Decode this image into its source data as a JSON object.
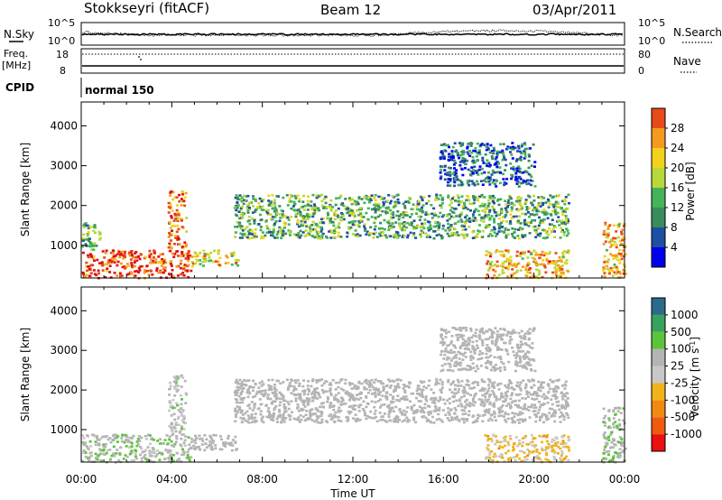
{
  "header": {
    "station": "Stokkseyri (fitACF)",
    "beam": "Beam 12",
    "date": "03/Apr/2011"
  },
  "strips": {
    "nsky_label": "N.Sky",
    "nsky_ticks": [
      "10^5",
      "10^0"
    ],
    "nsearch_label": "N.Search",
    "nsearch_ticks": [
      "10^5",
      "10^0"
    ],
    "freq_label_line1": "Freq.",
    "freq_label_line2": "[MHz]",
    "freq_ticks": [
      "18",
      "8"
    ],
    "nave_label": "Nave",
    "nave_ticks": [
      "80",
      "0"
    ],
    "cpid_label": "CPID",
    "cpid_value": "normal 150"
  },
  "colors": {
    "power_scale": [
      "#0000ee",
      "#1e4fa3",
      "#3a8c5a",
      "#44b35a",
      "#b8d83a",
      "#f2d21a",
      "#f49a1e",
      "#e84a18",
      "#e01010"
    ],
    "velocity_scale": [
      "#2040b0",
      "#2c6a8a",
      "#37a35c",
      "#5cc43a",
      "#b4b4b4",
      "#c8c8c8",
      "#f2b21a",
      "#f28a10",
      "#f05a10",
      "#e81010"
    ],
    "ground_scatter": "#b4b4b4"
  },
  "chart_data": [
    {
      "type": "heatmap",
      "title": "",
      "xlabel": "Time UT",
      "ylabel": "Slant Range [km]",
      "xlim": [
        "00:00",
        "24:00"
      ],
      "ylim": [
        180,
        4600
      ],
      "x_ticks": [
        "00:00",
        "04:00",
        "08:00",
        "12:00",
        "16:00",
        "20:00",
        "00:00"
      ],
      "y_ticks": [
        "1000",
        "2000",
        "3000",
        "4000"
      ],
      "colorbar_label": "Power [dB]",
      "colorbar_ticks": [
        "4",
        "8",
        "12",
        "16",
        "20",
        "24",
        "28"
      ],
      "color_range": [
        0,
        30
      ],
      "regions": [
        {
          "t_start": 0.0,
          "t_end": 4.8,
          "range_min": 200,
          "range_max": 900,
          "value": 26
        },
        {
          "t_start": 0.0,
          "t_end": 0.8,
          "range_min": 900,
          "range_max": 1600,
          "value": 12
        },
        {
          "t_start": 3.8,
          "t_end": 4.6,
          "range_min": 900,
          "range_max": 2400,
          "value": 22
        },
        {
          "t_start": 4.8,
          "t_end": 6.9,
          "range_min": 500,
          "range_max": 900,
          "value": 18
        },
        {
          "t_start": 6.7,
          "t_end": 21.5,
          "range_min": 1200,
          "range_max": 2300,
          "value": 11
        },
        {
          "t_start": 15.8,
          "t_end": 20.0,
          "range_min": 2500,
          "range_max": 3600,
          "value": 6
        },
        {
          "t_start": 17.8,
          "t_end": 21.5,
          "range_min": 200,
          "range_max": 900,
          "value": 20
        },
        {
          "t_start": 23.0,
          "t_end": 24.0,
          "range_min": 200,
          "range_max": 1600,
          "value": 20
        }
      ]
    },
    {
      "type": "heatmap",
      "title": "",
      "xlabel": "Time UT",
      "ylabel": "Slant Range [km]",
      "xlim": [
        "00:00",
        "24:00"
      ],
      "ylim": [
        180,
        4600
      ],
      "x_ticks": [
        "00:00",
        "04:00",
        "08:00",
        "12:00",
        "16:00",
        "20:00",
        "00:00"
      ],
      "y_ticks": [
        "1000",
        "2000",
        "3000",
        "4000"
      ],
      "colorbar_label": "Velocity [m s^-1]",
      "colorbar_ticks": [
        "1000",
        "500",
        "100",
        "25",
        "-25",
        "-100",
        "-500",
        "-1000"
      ],
      "color_range": [
        -1200,
        1200
      ],
      "regions": [
        {
          "t_start": 0.0,
          "t_end": 4.8,
          "range_min": 200,
          "range_max": 900,
          "value": 150
        },
        {
          "t_start": 3.8,
          "t_end": 4.6,
          "range_min": 900,
          "range_max": 2400,
          "value": 80
        },
        {
          "t_start": 4.8,
          "t_end": 6.9,
          "range_min": 500,
          "range_max": 900,
          "value": 0
        },
        {
          "t_start": 6.7,
          "t_end": 21.5,
          "range_min": 1200,
          "range_max": 2300,
          "value": 0
        },
        {
          "t_start": 15.8,
          "t_end": 20.0,
          "range_min": 2500,
          "range_max": 3600,
          "value": 0
        },
        {
          "t_start": 17.8,
          "t_end": 21.5,
          "range_min": 200,
          "range_max": 900,
          "value": -300
        },
        {
          "t_start": 23.0,
          "t_end": 24.0,
          "range_min": 200,
          "range_max": 1600,
          "value": 200
        }
      ]
    }
  ]
}
